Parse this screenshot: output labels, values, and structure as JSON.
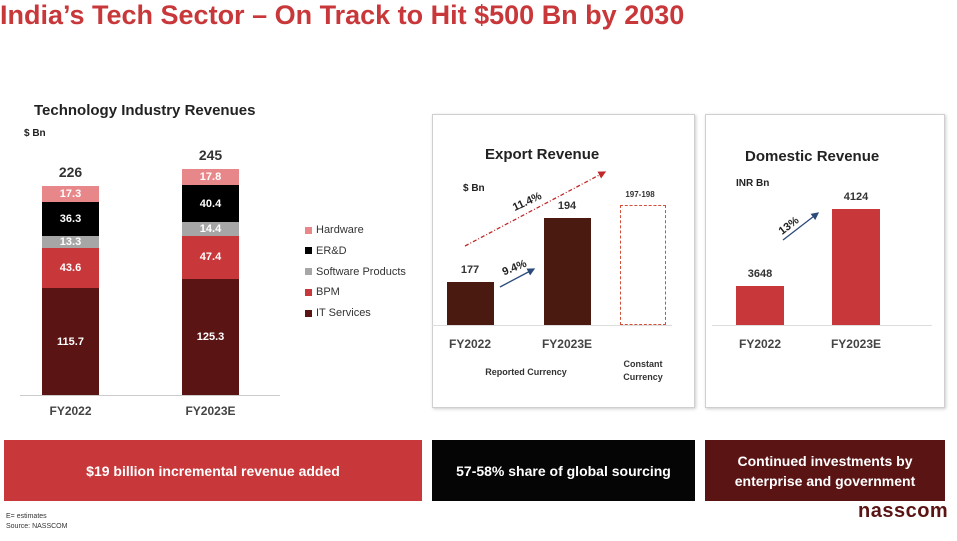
{
  "title": "India’s Tech Sector – On Track to Hit $500 Bn by 2030",
  "chart_data": [
    {
      "type": "bar",
      "stacked": true,
      "title": "Technology Industry Revenues",
      "ylabel": "$ Bn",
      "categories": [
        "FY2022",
        "FY2023E"
      ],
      "totals": [
        "226",
        "245"
      ],
      "series": [
        {
          "name": "IT Services",
          "values": [
            115.7,
            125.3
          ],
          "color": "#5a1414"
        },
        {
          "name": "BPM",
          "values": [
            43.6,
            47.4
          ],
          "color": "#c8383a"
        },
        {
          "name": "Software Products",
          "values": [
            13.3,
            14.4
          ],
          "color": "#a6a6a6"
        },
        {
          "name": "ER&D",
          "values": [
            36.3,
            40.4
          ],
          "color": "#000000"
        },
        {
          "name": "Hardware",
          "values": [
            17.3,
            17.8
          ],
          "color": "#e8878a"
        }
      ],
      "legend": "right"
    },
    {
      "type": "bar",
      "title": "Export Revenue",
      "ylabel": "$ Bn",
      "categories": [
        "FY2022",
        "FY2023E"
      ],
      "values": [
        177,
        194
      ],
      "color": "#4a1a10",
      "constant_currency": {
        "label": "197-198",
        "value": 197.5,
        "category": "Constant Currency"
      },
      "group_label": "Reported Currency",
      "annotations": [
        "9.4%",
        "11.4%"
      ],
      "ylim": [
        165.6,
        200
      ]
    },
    {
      "type": "bar",
      "title": "Domestic Revenue",
      "ylabel": "INR Bn",
      "categories": [
        "FY2022",
        "FY2023E"
      ],
      "values": [
        3648,
        4124
      ],
      "color": "#c8383a",
      "annotations": [
        "13%"
      ],
      "ylim": [
        3407,
        4200
      ]
    }
  ],
  "bands": [
    "$19 billion incremental revenue added",
    "57-58% share of global sourcing",
    "Continued investments by enterprise and government"
  ],
  "footnote": [
    "E= estimates",
    "Source: NASSCOM"
  ],
  "logo": "nasscom"
}
